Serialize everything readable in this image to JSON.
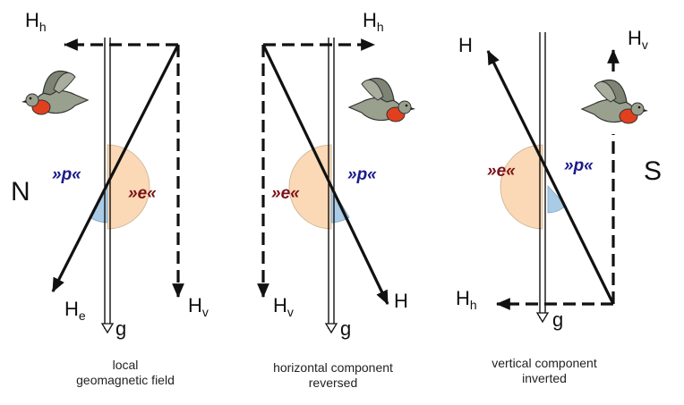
{
  "labels": {
    "horizontal": "H",
    "horizontal_sub": "h",
    "vertical": "H",
    "vertical_sub": "v",
    "field": "H",
    "field_sub": "e",
    "gravity": "g",
    "north": "N",
    "south": "S",
    "p_mark": "»p«",
    "e_mark": "»e«"
  },
  "panels": [
    {
      "id": "local",
      "caption_lines": [
        "local",
        "geomagnetic field"
      ]
    },
    {
      "id": "horizontal",
      "caption_lines": [
        "horizontal component",
        "reversed"
      ]
    },
    {
      "id": "vertical",
      "caption_lines": [
        "vertical component",
        "inverted"
      ]
    }
  ],
  "colors": {
    "line": "#111111",
    "angle_e_fill": "#fbd9b6",
    "angle_p_fill": "#a9cbe6",
    "p_text": "#1a1a8c",
    "e_text": "#7a1218",
    "bird_body": "#9aa08e",
    "bird_breast": "#e0401e"
  }
}
